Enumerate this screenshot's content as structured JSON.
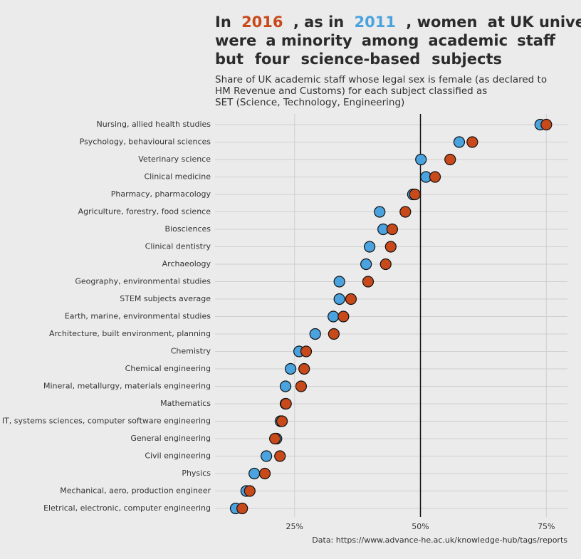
{
  "chart_data": {
    "type": "dot",
    "title_lines": [
      [
        {
          "text": "In"
        },
        {
          "text": "2016",
          "color": "#c8491a"
        },
        {
          "text": ", as in"
        },
        {
          "text": "2011",
          "color": "#4aa3df"
        },
        {
          "text": ", women"
        },
        {
          "text": "at UK unive"
        }
      ],
      [
        {
          "text": "were"
        },
        {
          "text": "a minority"
        },
        {
          "text": "among"
        },
        {
          "text": "academic"
        },
        {
          "text": "staff"
        }
      ],
      [
        {
          "text": "but"
        },
        {
          "text": "four"
        },
        {
          "text": "science-based"
        },
        {
          "text": "subjects"
        }
      ]
    ],
    "subtitle_lines": [
      "Share of UK academic staff whose legal sex is female (as declared to",
      "HM Revenue and Customs) for each subject classified as",
      "SET (Science, Technology, Engineering)"
    ],
    "caption": "Data: https://www.advance-he.ac.uk/knowledge-hub/tags/reports",
    "categories": [
      "Nursing, allied health studies",
      "Psychology, behavioural sciences",
      "Veterinary science",
      "Clinical medicine",
      "Pharmacy, pharmacology",
      "Agriculture, forestry, food science",
      "Biosciences",
      "Clinical dentistry",
      "Archaeology",
      "Geography, environmental studies",
      "STEM subjects average",
      "Earth, marine, environmental studies",
      "Architecture, built environment, planning",
      "Chemistry",
      "Chemical engineering",
      "Mineral, metallurgy, materials engineering",
      "Mathematics",
      "IT, systems sciences, computer software engineering",
      "General engineering",
      "Civil engineering",
      "Physics",
      "Mechanical, aero, production engineer",
      "Eletrical, electronic, computer engineering"
    ],
    "series": [
      {
        "color": "#4aa3df",
        "values": [
          73.8,
          57.7,
          50.1,
          51.1,
          48.5,
          41.9,
          42.6,
          39.9,
          39.2,
          33.9,
          33.9,
          32.7,
          29.1,
          25.9,
          24.2,
          23.2,
          23.2,
          22.2,
          21.4,
          19.4,
          17.0,
          15.4,
          13.3
        ]
      },
      {
        "color": "#c8491a",
        "values": [
          75.0,
          60.3,
          55.9,
          52.9,
          48.9,
          47.0,
          44.4,
          44.1,
          43.1,
          39.6,
          36.2,
          34.7,
          32.8,
          27.3,
          26.9,
          26.3,
          23.3,
          22.5,
          21.1,
          22.1,
          19.1,
          16.1,
          14.6
        ]
      }
    ],
    "xlim": [
      9.2,
      79.2
    ],
    "xticks": [
      {
        "value": 25,
        "label": "25%"
      },
      {
        "value": 50,
        "label": "50%"
      },
      {
        "value": 75,
        "label": "75%"
      }
    ],
    "ref_line": 50,
    "grid": true
  }
}
